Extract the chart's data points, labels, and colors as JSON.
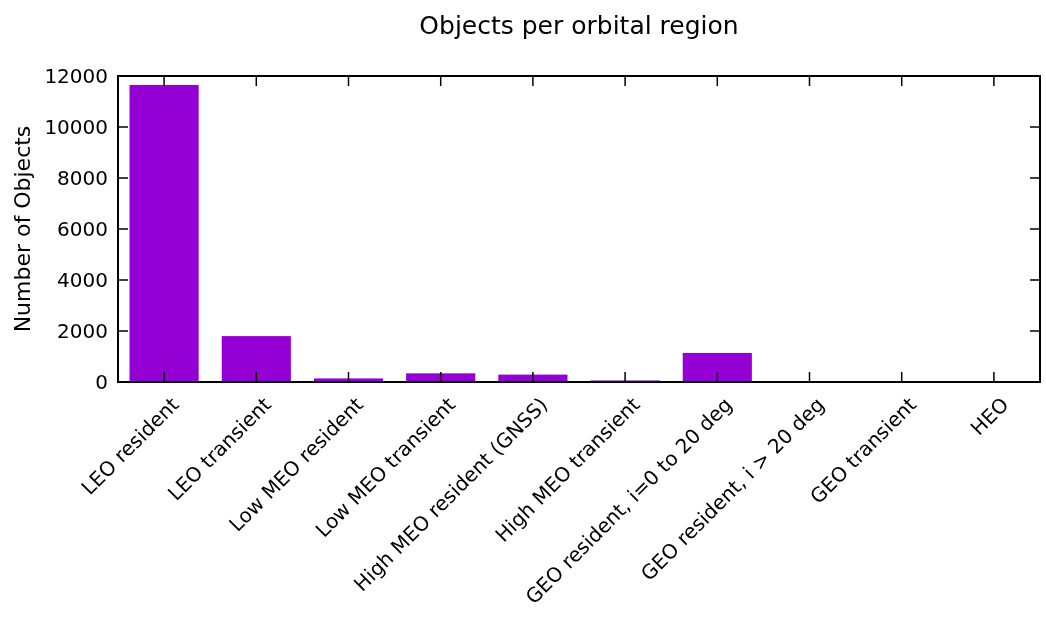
{
  "chart_data": {
    "type": "bar",
    "title": "Objects per orbital region",
    "ylabel": "Number of Objects",
    "categories": [
      "LEO resident",
      "LEO transient",
      "Low MEO resident",
      "Low MEO transient",
      "High MEO resident (GNSS)",
      "High MEO transient",
      "GEO resident, i=0 to 20 deg",
      "GEO resident, i > 20 deg",
      "GEO transient",
      "HEO"
    ],
    "values": [
      11650,
      1800,
      140,
      340,
      290,
      60,
      1140,
      0,
      0,
      0
    ],
    "color": "#9400d3",
    "ylim": [
      0,
      12000
    ],
    "yticks": [
      0,
      2000,
      4000,
      6000,
      8000,
      10000,
      12000
    ],
    "grid": false
  }
}
